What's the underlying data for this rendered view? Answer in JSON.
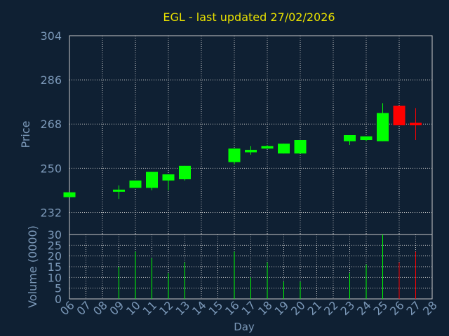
{
  "chart_data": {
    "type": "candlestick",
    "title": "EGL - last updated 27/02/2026",
    "xlabel": "Day",
    "ylabel_price": "Price",
    "ylabel_volume": "Volume (0000)",
    "x_ticks": [
      "06",
      "07",
      "08",
      "09",
      "10",
      "11",
      "12",
      "13",
      "14",
      "15",
      "16",
      "17",
      "18",
      "19",
      "20",
      "21",
      "22",
      "23",
      "24",
      "25",
      "26",
      "27",
      "28"
    ],
    "price_ticks": [
      232,
      250,
      268,
      286,
      304
    ],
    "price_ylim": [
      223,
      304
    ],
    "volume_ticks": [
      0,
      5,
      10,
      15,
      20,
      25,
      30
    ],
    "volume_ylim": [
      0,
      30
    ],
    "grid": true,
    "colors": {
      "up": "#00ff00",
      "down": "#ff0000",
      "title": "#e8e000",
      "axis_text": "#7b98b8",
      "background": "#0f2033",
      "grid": "#c8c8c8"
    },
    "candles": [
      {
        "day": "06",
        "open": 238.2,
        "high": 240.2,
        "low": 238.2,
        "close": 240.2,
        "volume": 0
      },
      {
        "day": "09",
        "open": 240.8,
        "high": 243.0,
        "low": 237.5,
        "close": 241.0,
        "volume": 15
      },
      {
        "day": "10",
        "open": 242.0,
        "high": 245.0,
        "low": 242.0,
        "close": 245.0,
        "volume": 22
      },
      {
        "day": "11",
        "open": 242.0,
        "high": 248.5,
        "low": 241.0,
        "close": 248.5,
        "volume": 19
      },
      {
        "day": "12",
        "open": 245.0,
        "high": 247.5,
        "low": 241.0,
        "close": 247.5,
        "volume": 12
      },
      {
        "day": "13",
        "open": 245.5,
        "high": 251.0,
        "low": 245.0,
        "close": 251.0,
        "volume": 17
      },
      {
        "day": "16",
        "open": 252.5,
        "high": 258.0,
        "low": 251.5,
        "close": 258.0,
        "volume": 22
      },
      {
        "day": "17",
        "open": 256.5,
        "high": 259.0,
        "low": 255.5,
        "close": 257.5,
        "volume": 10
      },
      {
        "day": "18",
        "open": 258.0,
        "high": 259.5,
        "low": 258.0,
        "close": 259.0,
        "volume": 17
      },
      {
        "day": "19",
        "open": 256.0,
        "high": 260.0,
        "low": 256.0,
        "close": 260.0,
        "volume": 8
      },
      {
        "day": "20",
        "open": 256.0,
        "high": 261.5,
        "low": 256.0,
        "close": 261.5,
        "volume": 8
      },
      {
        "day": "23",
        "open": 261.0,
        "high": 263.5,
        "low": 259.5,
        "close": 263.5,
        "volume": 12
      },
      {
        "day": "24",
        "open": 261.5,
        "high": 263.0,
        "low": 261.0,
        "close": 263.0,
        "volume": 16
      },
      {
        "day": "25",
        "open": 261.0,
        "high": 276.5,
        "low": 261.0,
        "close": 272.5,
        "volume": 30
      },
      {
        "day": "26",
        "open": 275.5,
        "high": 275.5,
        "low": 267.5,
        "close": 267.5,
        "volume": 17
      },
      {
        "day": "27",
        "open": 268.5,
        "high": 274.5,
        "low": 261.5,
        "close": 267.5,
        "volume": 22
      }
    ]
  }
}
